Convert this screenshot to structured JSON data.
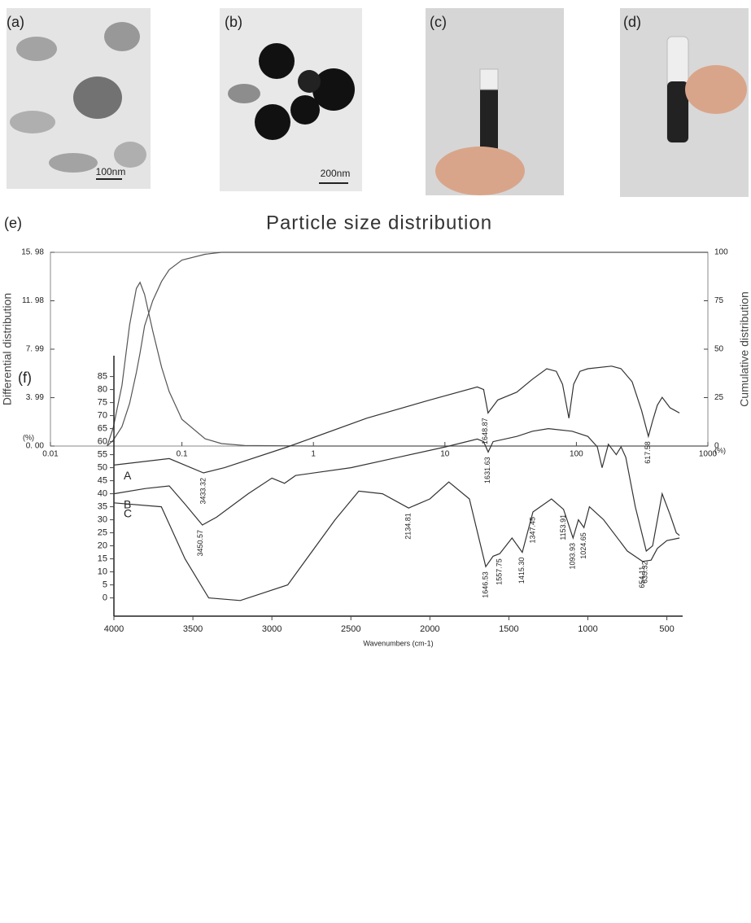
{
  "panels": [
    {
      "label": "(a)",
      "scale_bar": "100nm"
    },
    {
      "label": "(b)",
      "scale_bar": "200nm"
    },
    {
      "label": "(c)"
    },
    {
      "label": "(d)"
    }
  ],
  "chart_data": [
    {
      "type": "line",
      "label": "(e)",
      "title": "Particle size distribution",
      "ylabel": "Differential distribution",
      "y2label": "Cumulative distribution",
      "y_unit": "(%)",
      "y2_unit": "(%)",
      "xscale": "log",
      "frame": true,
      "grid": false,
      "xlim": [
        0.01,
        1000
      ],
      "xticks": [
        0.01,
        0.1,
        1,
        10,
        100,
        1000
      ],
      "ylim": [
        0,
        15.98
      ],
      "yticks": [
        {
          "value": 0,
          "label": "0. 00"
        },
        {
          "value": 3.99,
          "label": "3. 99"
        },
        {
          "value": 7.99,
          "label": "7. 99"
        },
        {
          "value": 11.98,
          "label": "11. 98"
        },
        {
          "value": 15.98,
          "label": "15. 98"
        }
      ],
      "y2lim": [
        0,
        100
      ],
      "y2ticks": [
        0,
        25,
        50,
        75,
        100
      ],
      "x": [
        0.027,
        0.03,
        0.035,
        0.04,
        0.045,
        0.048,
        0.052,
        0.06,
        0.07,
        0.08,
        0.1,
        0.15,
        0.2,
        0.3,
        1,
        10,
        100,
        1000
      ],
      "series": [
        {
          "color": "#555555",
          "values": [
            0,
            1.5,
            5,
            10,
            13,
            13.5,
            12.5,
            9.5,
            6.5,
            4.5,
            2.2,
            0.6,
            0.2,
            0.05,
            0,
            0,
            0,
            0
          ]
        },
        {
          "color": "#555555",
          "axis": "y2",
          "values": [
            0,
            3,
            10,
            22,
            38,
            48,
            62,
            75,
            85,
            91,
            96,
            99,
            100,
            100,
            100,
            100,
            100,
            100
          ]
        }
      ]
    },
    {
      "type": "line",
      "label": "(f)",
      "xlabel": "Wavenumbers (cm-1)",
      "frame": false,
      "grid": false,
      "xlim": [
        4000,
        400
      ],
      "xticks": [
        4000,
        3500,
        3000,
        2500,
        2000,
        1500,
        1000,
        500
      ],
      "ylim": [
        -7,
        93
      ],
      "yticks": [
        0,
        5,
        10,
        15,
        20,
        25,
        30,
        35,
        40,
        45,
        50,
        55,
        60,
        65,
        70,
        75,
        80,
        85
      ],
      "series": [
        {
          "name": "A",
          "color": "#333333",
          "x": [
            4000,
            3650,
            3433,
            3300,
            2900,
            2400,
            2000,
            1700,
            1660,
            1632,
            1570,
            1450,
            1350,
            1260,
            1200,
            1160,
            1120,
            1090,
            1050,
            1000,
            850,
            790,
            720,
            660,
            617,
            590,
            560,
            530,
            480,
            450,
            420
          ],
          "values": [
            51,
            53.5,
            48,
            50,
            58,
            69,
            76,
            81,
            80,
            71,
            76,
            79,
            84,
            88,
            87,
            82,
            69,
            82,
            87,
            88,
            89,
            88,
            83,
            72,
            62,
            68,
            74,
            77,
            73,
            72,
            71
          ]
        },
        {
          "name": "B",
          "color": "#333333",
          "x": [
            4000,
            3800,
            3650,
            3550,
            3440,
            3350,
            3150,
            3000,
            2920,
            2850,
            2500,
            2200,
            1900,
            1700,
            1660,
            1631,
            1600,
            1450,
            1350,
            1250,
            1100,
            1000,
            940,
            910,
            870,
            820,
            790,
            760,
            700,
            630,
            590,
            530,
            480,
            440,
            420
          ],
          "values": [
            40,
            42,
            43,
            36,
            28,
            31,
            40,
            46,
            44,
            47,
            50,
            54,
            58,
            61,
            60,
            56,
            60,
            62,
            64,
            65,
            64,
            62,
            58,
            50,
            59,
            55,
            58,
            54,
            35,
            18,
            20,
            40,
            32,
            25,
            24
          ]
        },
        {
          "name": "C",
          "color": "#333333",
          "x": [
            4000,
            3700,
            3550,
            3400,
            3200,
            2900,
            2600,
            2450,
            2300,
            2134.81,
            2000,
            1880,
            1750,
            1646.53,
            1600,
            1557.75,
            1480,
            1415.3,
            1347.45,
            1230,
            1153.91,
            1093.93,
            1060,
            1024.65,
            990,
            900,
            750,
            654.11,
            600,
            560,
            500,
            420
          ],
          "values": [
            36.5,
            35,
            15,
            0,
            -1,
            5,
            30,
            41,
            40,
            34.5,
            38,
            44.5,
            38,
            12,
            16,
            17,
            23,
            17.5,
            33,
            38,
            34,
            23,
            30,
            27,
            35,
            30,
            18,
            14,
            14.5,
            19,
            22,
            23
          ]
        }
      ],
      "annotations": [
        {
          "text": "3433.32",
          "x": 3433.32,
          "y": 48
        },
        {
          "text": "1648.87",
          "x": 1648.87,
          "y": 71
        },
        {
          "text": "617.58",
          "x": 617.58,
          "y": 62
        },
        {
          "text": "1631.63",
          "x": 1631.63,
          "y": 56
        },
        {
          "text": "3450.57",
          "x": 3450.57,
          "y": 28
        },
        {
          "text": "2134.81",
          "x": 2134.81,
          "y": 34.5
        },
        {
          "text": "1646.53",
          "x": 1646.53,
          "y": 12
        },
        {
          "text": "1557.75",
          "x": 1557.75,
          "y": 17
        },
        {
          "text": "1415.30",
          "x": 1415.3,
          "y": 17.5
        },
        {
          "text": "1347.45",
          "x": 1347.45,
          "y": 33
        },
        {
          "text": "1153.91",
          "x": 1153.91,
          "y": 34
        },
        {
          "text": "1093.93",
          "x": 1093.93,
          "y": 23
        },
        {
          "text": "1024.65",
          "x": 1024.65,
          "y": 27
        },
        {
          "text": "654.11",
          "x": 654.11,
          "y": 14
        },
        {
          "text": "635.32",
          "x": 635.32,
          "y": 16
        }
      ]
    }
  ]
}
